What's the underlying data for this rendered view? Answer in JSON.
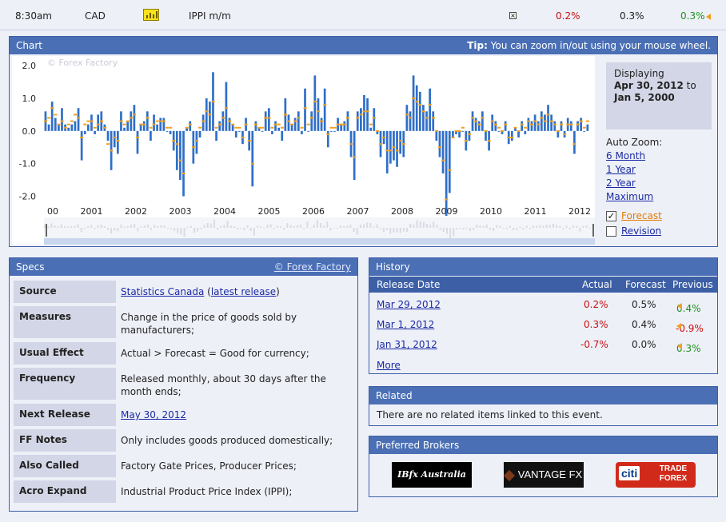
{
  "event": {
    "time": "8:30am",
    "currency": "CAD",
    "title": "IPPI m/m",
    "actual": "0.2%",
    "forecast": "0.3%",
    "previous": "0.3%",
    "close_glyph": "×"
  },
  "chart": {
    "panel_title": "Chart",
    "tip_label": "Tip:",
    "tip_text": "You can zoom in/out using your mouse wheel.",
    "watermark": "© Forex Factory",
    "display_label": "Displaying",
    "display_from": "Apr 30, 2012",
    "display_to_word": "to",
    "display_to": "Jan 5, 2000",
    "auto_zoom_label": "Auto Zoom:",
    "zoom_options": [
      "6 Month",
      "1 Year",
      "2 Year",
      "Maximum"
    ],
    "forecast_label": "Forecast",
    "forecast_checked": true,
    "revision_label": "Revision",
    "revision_checked": false
  },
  "chart_data": {
    "type": "bar",
    "y_ticks": [
      "2.0",
      "1.0",
      "0.0",
      "-1.0",
      "-2.0"
    ],
    "ylim": [
      -2.6,
      2.2
    ],
    "x_tick_labels": [
      "00",
      "2001",
      "2002",
      "2003",
      "2004",
      "2005",
      "2006",
      "2007",
      "2008",
      "2009",
      "2010",
      "2011",
      "2012"
    ],
    "series": [
      {
        "name": "Actual",
        "color": "#2f6fc8",
        "values": [
          0.6,
          0.2,
          0.9,
          0.4,
          0.2,
          0.7,
          0.2,
          0.1,
          0.2,
          0.3,
          0.7,
          -0.9,
          -0.1,
          0.2,
          0.5,
          -0.1,
          0.5,
          0.6,
          0.2,
          -0.3,
          -1.2,
          -0.5,
          -0.7,
          0.6,
          0.1,
          0.3,
          0.6,
          0.8,
          -0.7,
          0.2,
          0.3,
          0.6,
          -0.3,
          0.5,
          0.2,
          0.4,
          0.4,
          0.0,
          -0.1,
          -0.6,
          -1.2,
          -1.5,
          -2.0,
          0.1,
          0.3,
          -1.0,
          -0.7,
          -0.2,
          0.5,
          1.0,
          0.9,
          1.8,
          -0.3,
          0.3,
          0.6,
          1.5,
          0.4,
          0.2,
          -0.2,
          0.0,
          -0.4,
          0.4,
          -0.6,
          -1.7,
          0.3,
          0.1,
          0.0,
          0.6,
          0.7,
          -0.1,
          0.3,
          0.1,
          -0.3,
          1.0,
          0.5,
          0.2,
          0.4,
          0.6,
          -0.1,
          1.3,
          0.0,
          0.6,
          1.7,
          1.0,
          0.4,
          1.3,
          -0.5,
          0.0,
          0.0,
          0.4,
          0.2,
          0.3,
          0.6,
          -0.8,
          -1.5,
          0.6,
          0.7,
          1.1,
          1.0,
          0.1,
          0.7,
          -0.1,
          -0.8,
          -0.4,
          -1.3,
          -1.0,
          -0.9,
          -1.1,
          -0.7,
          -0.8,
          0.8,
          0.6,
          1.7,
          1.4,
          1.2,
          0.8,
          0.6,
          1.3,
          0.6,
          -0.3,
          -0.8,
          -1.3,
          -2.6,
          -1.9,
          -0.2,
          -0.1,
          -0.2,
          0.0,
          -0.6,
          -0.3,
          0.6,
          0.4,
          0.3,
          0.6,
          -0.3,
          -0.6,
          0.5,
          0.3,
          0.0,
          -0.1,
          0.3,
          -0.4,
          -0.3,
          0.1,
          -0.2,
          0.3,
          -0.1,
          0.4,
          0.3,
          0.5,
          0.3,
          0.6,
          0.5,
          0.8,
          0.5,
          0.3,
          -0.2,
          0.3,
          -0.2,
          0.4,
          0.3,
          -0.7,
          0.3,
          0.4,
          0.0,
          0.2
        ]
      },
      {
        "name": "Forecast",
        "color": "#f0a020",
        "values": [
          0.3,
          0.4,
          0.7,
          0.5,
          0.2,
          0.3,
          0.1,
          0.2,
          0.3,
          0.5,
          0.4,
          -0.2,
          0.2,
          0.3,
          0.3,
          0.1,
          0.2,
          0.3,
          0.1,
          -0.4,
          -0.6,
          -0.2,
          -0.3,
          0.3,
          0.2,
          0.3,
          0.4,
          0.5,
          -0.2,
          0.2,
          0.2,
          0.4,
          0.1,
          0.2,
          0.3,
          0.3,
          0.3,
          0.1,
          0.1,
          -0.3,
          -0.4,
          -0.9,
          -1.3,
          0.1,
          0.2,
          -0.5,
          -0.3,
          0.1,
          0.3,
          0.6,
          0.5,
          0.9,
          0.1,
          0.2,
          0.4,
          0.7,
          0.3,
          0.2,
          0.1,
          0.1,
          -0.2,
          0.2,
          -0.3,
          -1.0,
          0.2,
          0.1,
          0.1,
          0.4,
          0.4,
          0.1,
          0.2,
          0.2,
          0.1,
          0.5,
          0.3,
          0.2,
          0.3,
          0.4,
          0.1,
          0.7,
          0.2,
          0.4,
          0.9,
          0.6,
          0.3,
          0.8,
          -0.1,
          0.1,
          0.1,
          0.2,
          0.2,
          0.2,
          0.4,
          -0.4,
          -0.8,
          0.4,
          0.5,
          0.6,
          0.6,
          0.2,
          0.4,
          0.0,
          -0.4,
          -0.2,
          -0.6,
          -0.6,
          -0.5,
          -0.6,
          -0.3,
          -0.4,
          0.5,
          0.4,
          1.0,
          0.9,
          0.8,
          0.6,
          0.4,
          0.8,
          0.4,
          0.0,
          -0.5,
          -0.9,
          -2.1,
          -1.2,
          -0.2,
          0.0,
          0.0,
          0.1,
          -0.3,
          -0.1,
          0.4,
          0.3,
          0.2,
          0.4,
          0.0,
          -0.3,
          0.3,
          0.2,
          0.1,
          0.0,
          0.2,
          -0.2,
          -0.2,
          0.1,
          0.0,
          0.2,
          0.1,
          0.3,
          0.2,
          0.3,
          0.2,
          0.4,
          0.3,
          0.5,
          0.3,
          0.2,
          0.0,
          0.2,
          -0.1,
          0.2,
          0.2,
          -0.4,
          0.2,
          0.3,
          0.1,
          0.3
        ]
      }
    ]
  },
  "specs": {
    "title": "Specs",
    "credit": "© Forex Factory",
    "rows": [
      {
        "key": "Source",
        "value": "Statistics Canada",
        "link2_prefix": " (",
        "link2": "latest release",
        "link2_suffix": ")"
      },
      {
        "key": "Measures",
        "value": "Change in the price of goods sold by manufacturers;"
      },
      {
        "key": "Usual Effect",
        "value": "Actual > Forecast = Good for currency;"
      },
      {
        "key": "Frequency",
        "value": "Released monthly, about 30 days after the month ends;"
      },
      {
        "key": "Next Release",
        "value": "May 30, 2012"
      },
      {
        "key": "FF Notes",
        "value": "Only includes goods produced domestically;"
      },
      {
        "key": "Also Called",
        "value": "Factory Gate Prices, Producer Prices;"
      },
      {
        "key": "Acro Expand",
        "value": "Industrial Product Price Index (IPPI);"
      }
    ]
  },
  "history": {
    "title": "History",
    "columns": [
      "Release Date",
      "Actual",
      "Forecast",
      "Previous"
    ],
    "rows": [
      {
        "date": "Mar 29, 2012",
        "actual": "0.2%",
        "forecast": "0.5%",
        "previous": "0.4%"
      },
      {
        "date": "Mar 1, 2012",
        "actual": "0.3%",
        "forecast": "0.4%",
        "previous": "-0.9%"
      },
      {
        "date": "Jan 31, 2012",
        "actual": "-0.7%",
        "forecast": "0.0%",
        "previous": "0.3%"
      }
    ],
    "more_label": "More"
  },
  "related": {
    "title": "Related",
    "text": "There are no related items linked to this event."
  },
  "brokers": {
    "title": "Preferred Brokers",
    "items": [
      {
        "name": "IBFX Australia",
        "logo_text": "IBfx Australia"
      },
      {
        "name": "VANTAGE FX",
        "logo_text": "VANTAGE FX"
      },
      {
        "name": "citi TRADE FOREX",
        "logo_text": "citi",
        "logo_text2": "TRADE FOREX"
      }
    ]
  }
}
